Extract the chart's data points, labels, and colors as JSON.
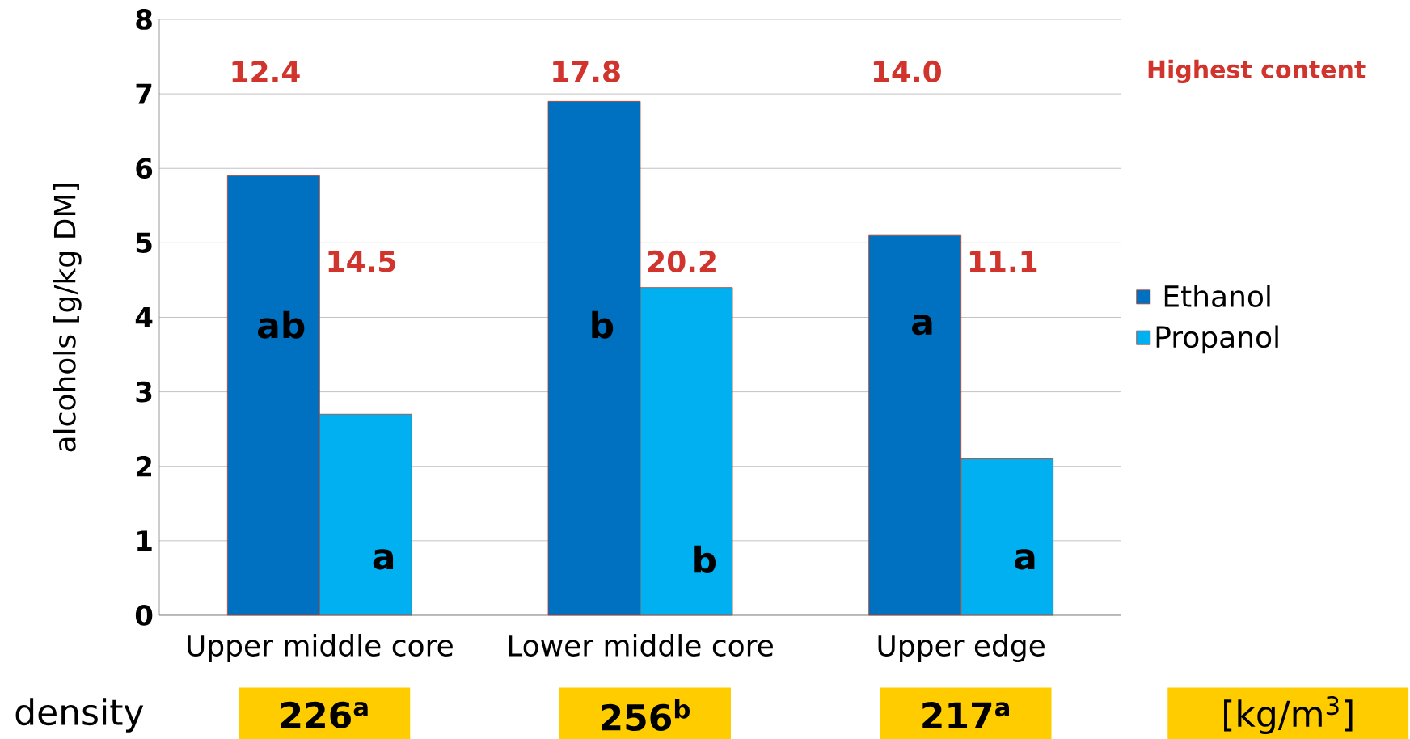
{
  "chart_data": {
    "type": "bar",
    "ylabel": "alcohols  [g/kg DM]",
    "categories": [
      "Upper middle core",
      "Lower middle core",
      "Upper edge"
    ],
    "series": [
      {
        "name": "Ethanol",
        "color": "#0070c0",
        "values": [
          5.9,
          6.9,
          5.1
        ]
      },
      {
        "name": "Propanol",
        "color": "#00b0f0",
        "values": [
          2.7,
          4.4,
          2.1
        ]
      }
    ],
    "ylim": [
      0,
      8
    ],
    "yticks": [
      0,
      1,
      2,
      3,
      4,
      5,
      6,
      7,
      8
    ],
    "grid": "y",
    "legend": "right",
    "annotations": [
      "12.4",
      "14.5",
      "17.8",
      "20.2",
      "14.0",
      "11.1",
      "Highest content",
      "ab",
      "a",
      "b",
      "b",
      "a",
      "a",
      "density",
      "226$^{a}$",
      "256$^{b}$",
      "217$^{a}$",
      "[kg/m$^{3}$]"
    ]
  }
}
